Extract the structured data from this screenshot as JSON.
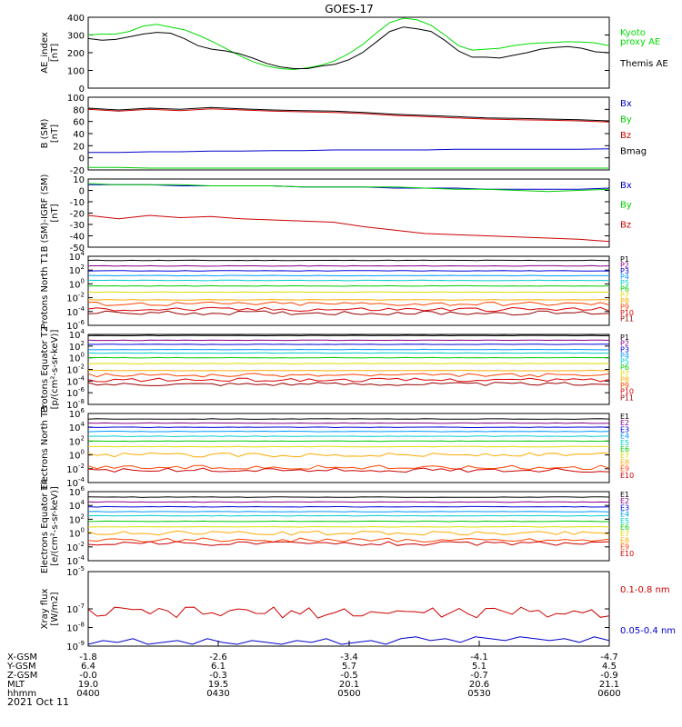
{
  "title": "GOES-17",
  "date_label": "2021 Oct 11",
  "x_axis": {
    "rows": [
      {
        "label": "X-GSM",
        "values": [
          "-1.8",
          "-2.6",
          "-3.4",
          "-4.1",
          "-4.7"
        ]
      },
      {
        "label": "Y-GSM",
        "values": [
          "6.4",
          "6.1",
          "5.7",
          "5.1",
          "4.5"
        ]
      },
      {
        "label": "Z-GSM",
        "values": [
          "-0.0",
          "-0.3",
          "-0.5",
          "-0.7",
          "-0.9"
        ]
      },
      {
        "label": "MLT",
        "values": [
          "19.0",
          "19.5",
          "20.1",
          "20.6",
          "21.1"
        ]
      },
      {
        "label": "hhmm",
        "values": [
          "0400",
          "0430",
          "0500",
          "0530",
          "0600"
        ]
      }
    ]
  },
  "chart_data": [
    {
      "type": "line",
      "ylabel": "AE_index [nT]",
      "ylim": [
        0,
        400
      ],
      "yscale": "linear",
      "yticks": [
        "0",
        "100",
        "200",
        "300",
        "400"
      ],
      "series": [
        {
          "name": "Kyoto proxy AE",
          "color": "#00dd00",
          "legend": [
            "Kyoto",
            "proxy AE"
          ],
          "y": [
            300,
            305,
            305,
            320,
            350,
            360,
            345,
            330,
            300,
            265,
            225,
            185,
            150,
            125,
            110,
            105,
            115,
            130,
            155,
            195,
            245,
            310,
            370,
            395,
            385,
            355,
            300,
            240,
            215,
            220,
            225,
            240,
            250,
            255,
            258,
            262,
            260,
            255,
            240
          ]
        },
        {
          "name": "Themis AE",
          "color": "#000000",
          "legend": [
            "Themis AE"
          ],
          "y": [
            280,
            270,
            275,
            290,
            305,
            315,
            310,
            280,
            240,
            220,
            210,
            195,
            170,
            140,
            120,
            110,
            110,
            125,
            135,
            160,
            200,
            260,
            320,
            345,
            335,
            320,
            270,
            210,
            175,
            175,
            170,
            185,
            200,
            220,
            230,
            235,
            225,
            205,
            200
          ]
        }
      ]
    },
    {
      "type": "line",
      "ylabel": "B (SM) [nT]",
      "ylim": [
        -20,
        100
      ],
      "yscale": "linear",
      "yticks": [
        "-20",
        "0",
        "20",
        "40",
        "60",
        "80",
        "100"
      ],
      "series": [
        {
          "name": "Bx",
          "color": "#0000cc",
          "y": [
            9,
            9,
            10,
            10,
            11,
            11,
            12,
            12,
            13,
            13,
            13,
            13,
            14,
            14,
            14,
            14,
            14,
            15
          ]
        },
        {
          "name": "By",
          "color": "#00cc00",
          "y": [
            -16,
            -16,
            -17,
            -17,
            -17,
            -17,
            -17,
            -17,
            -17,
            -17,
            -17,
            -17,
            -17,
            -17,
            -17,
            -17,
            -17,
            -17
          ]
        },
        {
          "name": "Bz",
          "color": "#cc0000",
          "y": [
            80,
            77,
            80,
            78,
            81,
            79,
            77,
            76,
            75,
            73,
            70,
            68,
            66,
            64,
            63,
            62,
            61,
            59
          ]
        },
        {
          "name": "Bmag",
          "color": "#000000",
          "y": [
            82,
            79,
            82,
            80,
            83,
            81,
            79,
            78,
            77,
            75,
            72,
            70,
            68,
            66,
            65,
            64,
            63,
            61
          ]
        }
      ]
    },
    {
      "type": "line",
      "ylabel": "B (SM)-IGRF (SM) [nT]",
      "ylim": [
        -50,
        10
      ],
      "yscale": "linear",
      "yticks": [
        "-50",
        "-40",
        "-30",
        "-20",
        "-10",
        "0",
        "10"
      ],
      "series": [
        {
          "name": "Bx",
          "color": "#0000cc",
          "y": [
            5,
            5,
            5,
            4,
            4,
            4,
            4,
            3,
            3,
            3,
            2,
            2,
            2,
            1,
            1,
            1,
            1,
            2
          ]
        },
        {
          "name": "By",
          "color": "#00cc00",
          "y": [
            6,
            5,
            5,
            5,
            4,
            4,
            4,
            3,
            3,
            3,
            3,
            2,
            1,
            1,
            0,
            -1,
            0,
            1
          ]
        },
        {
          "name": "Bz",
          "color": "#cc0000",
          "y": [
            -22,
            -25,
            -22,
            -24,
            -23,
            -25,
            -26,
            -27,
            -28,
            -32,
            -35,
            -38,
            -39,
            -40,
            -41,
            -42,
            -43,
            -45
          ]
        }
      ]
    },
    {
      "type": "line",
      "ylabel": "Protons North T1",
      "ylim": [
        -6,
        4
      ],
      "yscale": "log",
      "yticks": [
        "10^4",
        "10^2",
        "10^0",
        "10^-2",
        "10^-4",
        "10^-6"
      ],
      "series": [
        {
          "name": "P1",
          "color": "#000000",
          "logy": 3.4
        },
        {
          "name": "P2",
          "color": "#880088",
          "logy": 2.6
        },
        {
          "name": "P3",
          "color": "#0000dd",
          "logy": 1.9
        },
        {
          "name": "P4",
          "color": "#0099ff",
          "logy": 1.2
        },
        {
          "name": "P5",
          "color": "#00cccc",
          "logy": 0.5
        },
        {
          "name": "P6",
          "color": "#00cc00",
          "logy": -0.3
        },
        {
          "name": "P7",
          "color": "#dddd00",
          "logy": -1.2
        },
        {
          "name": "P8",
          "color": "#ffaa00",
          "logy": -2.3
        },
        {
          "name": "P9",
          "color": "#ff4400",
          "logy": -2.9
        },
        {
          "name": "P10",
          "color": "#dd0000",
          "logy": -3.7
        },
        {
          "name": "P11",
          "color": "#990000",
          "logy": -4.2
        }
      ]
    },
    {
      "type": "line",
      "ylabel": "Protons Equator T2 [p/(cm²-s-sr-keV)]",
      "ylim": [
        -8,
        4
      ],
      "yscale": "log",
      "yticks": [
        "10^4",
        "10^2",
        "10^0",
        "10^-2",
        "10^-4",
        "10^-6",
        "10^-8"
      ],
      "series": [
        {
          "name": "P1",
          "color": "#000000",
          "logy": 3.8
        },
        {
          "name": "P2",
          "color": "#880088",
          "logy": 3.0
        },
        {
          "name": "P3",
          "color": "#0000dd",
          "logy": 2.3
        },
        {
          "name": "P4",
          "color": "#0099ff",
          "logy": 1.4
        },
        {
          "name": "P5",
          "color": "#00cccc",
          "logy": 0.8
        },
        {
          "name": "P6",
          "color": "#00cc00",
          "logy": 0.0
        },
        {
          "name": "P7",
          "color": "#dddd00",
          "logy": -1.0
        },
        {
          "name": "P8",
          "color": "#ffaa00",
          "logy": -2.2
        },
        {
          "name": "P9",
          "color": "#ff4400",
          "logy": -3.0
        },
        {
          "name": "P10",
          "color": "#dd0000",
          "logy": -3.8
        },
        {
          "name": "P11",
          "color": "#990000",
          "logy": -4.5
        }
      ]
    },
    {
      "type": "line",
      "ylabel": "Electrons North T3",
      "ylim": [
        -4,
        6
      ],
      "yscale": "log",
      "yticks": [
        "10^6",
        "10^4",
        "10^2",
        "10^0",
        "10^-2",
        "10^-4"
      ],
      "series": [
        {
          "name": "E1",
          "color": "#000000",
          "logy": 5.2
        },
        {
          "name": "E2",
          "color": "#880088",
          "logy": 4.6
        },
        {
          "name": "E3",
          "color": "#0000dd",
          "logy": 4.0
        },
        {
          "name": "E4",
          "color": "#0099ff",
          "logy": 3.4
        },
        {
          "name": "E5",
          "color": "#00cccc",
          "logy": 2.7
        },
        {
          "name": "E6",
          "color": "#00cc00",
          "logy": 2.0
        },
        {
          "name": "E7",
          "color": "#dddd00",
          "logy": 1.2
        },
        {
          "name": "E8",
          "color": "#ffaa00",
          "logy": 0.0
        },
        {
          "name": "E9",
          "color": "#ff4400",
          "logy": -1.8
        },
        {
          "name": "E10",
          "color": "#cc0000",
          "logy": -2.2
        }
      ]
    },
    {
      "type": "line",
      "ylabel": "Electrons Equator T4 [e/(cm²-s-sr-keV)]",
      "ylim": [
        -4,
        6
      ],
      "yscale": "log",
      "yticks": [
        "10^6",
        "10^4",
        "10^2",
        "10^0",
        "10^-2",
        "10^-4"
      ],
      "series": [
        {
          "name": "E1",
          "color": "#000000",
          "logy": 5.2
        },
        {
          "name": "E2",
          "color": "#880088",
          "logy": 4.5
        },
        {
          "name": "E3",
          "color": "#0000dd",
          "logy": 3.8
        },
        {
          "name": "E4",
          "color": "#0099ff",
          "logy": 3.1
        },
        {
          "name": "E5",
          "color": "#00cccc",
          "logy": 2.5
        },
        {
          "name": "E6",
          "color": "#00cc00",
          "logy": 1.7
        },
        {
          "name": "E7",
          "color": "#dddd00",
          "logy": 0.9
        },
        {
          "name": "E8",
          "color": "#ffaa00",
          "logy": 0.0
        },
        {
          "name": "E9",
          "color": "#ff4400",
          "logy": -1.0
        },
        {
          "name": "E10",
          "color": "#cc0000",
          "logy": -1.5
        }
      ]
    },
    {
      "type": "line",
      "ylabel": "Xray flux [W/m2]",
      "ylim": [
        -9,
        -5
      ],
      "yscale": "log",
      "yticks": [
        "10^-5",
        "10^-7",
        "10^-8",
        "10^-9"
      ],
      "series": [
        {
          "name": "0.1-0.8 nm",
          "color": "#cc0000",
          "logy": -7.2
        },
        {
          "name": "0.05-0.4 nm",
          "color": "#0000cc",
          "logy": [
            -8.9,
            -8.7,
            -8.8,
            -8.6,
            -8.9,
            -8.8,
            -8.7,
            -8.9,
            -8.6,
            -8.8,
            -8.9,
            -8.7,
            -8.8,
            -8.9,
            -8.7,
            -8.8,
            -8.6,
            -8.9,
            -8.8,
            -8.7,
            -8.9,
            -8.6,
            -8.5,
            -8.7,
            -8.6,
            -8.8,
            -8.5,
            -8.6,
            -8.7,
            -8.5,
            -8.6,
            -8.7,
            -8.6,
            -8.8,
            -8.5,
            -8.7
          ]
        }
      ]
    }
  ]
}
